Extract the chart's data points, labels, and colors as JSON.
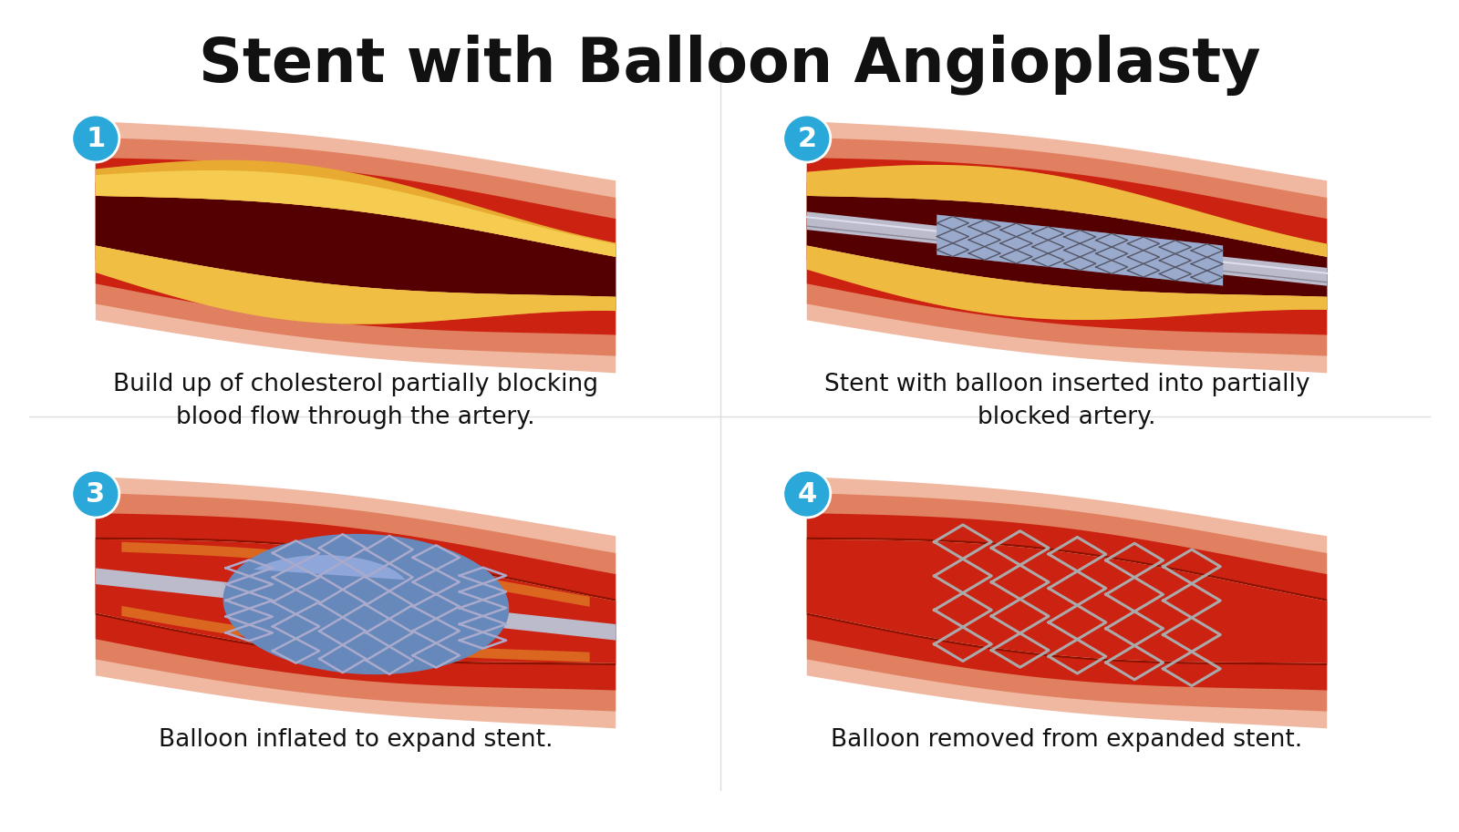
{
  "title": "Stent with Balloon Angioplasty",
  "title_fontsize": 48,
  "title_fontweight": "bold",
  "background_color": "#ffffff",
  "step_circle_color": "#29a8d9",
  "step_number_color": "#ffffff",
  "captions": [
    "Build up of cholesterol partially blocking\nblood flow through the artery.",
    "Stent with balloon inserted into partially\nblocked artery.",
    "Balloon inflated to expand stent.",
    "Balloon removed from expanded stent."
  ],
  "caption_fontsize": 19,
  "colors": {
    "artery_outer": "#f0b8a0",
    "artery_outer2": "#e89878",
    "artery_red1": "#cc2211",
    "artery_red2": "#aa1100",
    "artery_dark": "#771100",
    "artery_inner_wall": "#ffccaa",
    "plaque_outer": "#e8b030",
    "plaque_inner": "#f5d060",
    "lumen_dark": "#660000",
    "lumen_blood": "#cc2211",
    "stent_wire": "#999aaa",
    "stent_wire_dark": "#666677",
    "balloon_light": "#aabbdd",
    "balloon_mid": "#7799cc",
    "balloon_dark": "#4466aa",
    "catheter": "#aaaaaa",
    "catheter_dark": "#888888"
  }
}
